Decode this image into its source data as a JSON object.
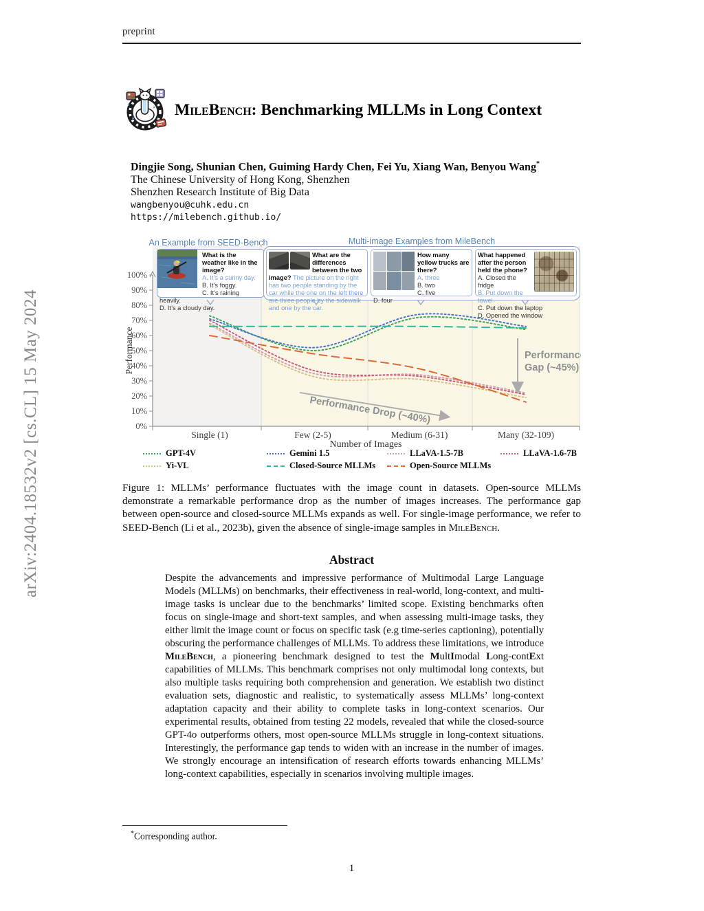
{
  "page": {
    "header": "preprint",
    "arxiv_stamp": "arXiv:2404.18532v2  [cs.CL]  15 May 2024",
    "page_number": "1"
  },
  "title": {
    "name": "MileBench",
    "rest": ": Benchmarking MLLMs in Long Context"
  },
  "authors": {
    "names": "Dingjie Song, Shunian Chen, Guiming Hardy Chen, Fei Yu, Xiang Wan, Benyou Wang",
    "mark": "*",
    "affil1": "The Chinese University of Hong Kong, Shenzhen",
    "affil2": "Shenzhen Research Institute of Big Data",
    "email": "wangbenyou@cuhk.edu.cn",
    "url": "https://milebench.github.io/"
  },
  "figure": {
    "left_caption": "An Example from SEED-Bench",
    "right_caption": "Multi-image Examples from MileBench",
    "colors": {
      "caption_blue": "#5585b5",
      "answer_blue": "#7aa3d6",
      "box_border": "#8aa6cc",
      "cream_bg": "#f9f6e6",
      "gray_bg": "#f3f2f0"
    },
    "boxes": [
      {
        "question": "What is the weather like in the image?",
        "options": [
          "A. It’s a sunny day.",
          "B. It’s foggy.",
          "C. It’s raining heavily.",
          "D. It’s a cloudy day."
        ]
      },
      {
        "question": "What are the differences between the two image?",
        "answer": "The picture on the right has two people standing by the car while the one on the left there are three people by the sidewalk and one by the car."
      },
      {
        "question": "How many yellow trucks are there?",
        "options": [
          "A. three",
          "B. two",
          "C. five",
          "D. four"
        ]
      },
      {
        "question": "What happened after the person held the phone?",
        "options": [
          "A. Closed the fridge",
          "B. Put down the towel",
          "C. Put down the laptop",
          "D. Opened the window"
        ]
      }
    ]
  },
  "chart_data": {
    "type": "line",
    "categories": [
      "Single (1)",
      "Few (2-5)",
      "Medium (6-31)",
      "Many (32-109)"
    ],
    "xlabel": "Number of  Images",
    "ylabel": "Performance",
    "ylim": [
      0,
      100
    ],
    "ytick_step": 10,
    "ytick_format": "percent",
    "grid": false,
    "legend_position": "bottom",
    "series": [
      {
        "name": "GPT-4V",
        "style": "dotted",
        "color": "#3fa45b",
        "values": [
          73,
          50,
          72,
          64
        ]
      },
      {
        "name": "Gemini 1.5",
        "style": "dotted",
        "color": "#4a74c9",
        "values": [
          71,
          52,
          74,
          66
        ]
      },
      {
        "name": "LLaVA-1.5-7B",
        "style": "dotted",
        "color": "#d49fae",
        "values": [
          68,
          35,
          34,
          22
        ]
      },
      {
        "name": "LLaVA-1.6-7B",
        "style": "dotted",
        "color": "#cf5b76",
        "values": [
          70,
          37,
          33,
          21
        ]
      },
      {
        "name": "Yi-VL",
        "style": "dotted",
        "color": "#d6c289",
        "values": [
          67,
          33,
          31,
          19
        ]
      },
      {
        "name": "Closed-Source MLLMs",
        "style": "dashed",
        "color": "#33b898",
        "values": [
          66,
          66,
          66,
          65
        ]
      },
      {
        "name": "Open-Source MLLMs",
        "style": "dashed",
        "color": "#d96b35",
        "values": [
          60,
          48,
          38,
          16
        ]
      }
    ],
    "annotations": [
      {
        "text": "Performance Drop (~40%)"
      },
      {
        "line1": "Performance",
        "line2": "Gap (~45%)"
      }
    ]
  },
  "caption": {
    "segments": [
      {
        "t": "Figure 1: MLLMs’ performance fluctuates with the image count in datasets. Open-source MLLMs demonstrate a remarkable performance drop as the number of images increases. The performance gap between open-source and closed-source MLLMs expands as well. For single-image performance, we refer to SEED-Bench (Li et al., 2023b), given the absence of single-image samples in "
      },
      {
        "t": "MileBench",
        "sc": true
      },
      {
        "t": "."
      }
    ]
  },
  "abstract": {
    "heading": "Abstract",
    "segments": [
      {
        "t": "Despite the advancements and impressive performance of Multimodal Large Language Models (MLLMs) on benchmarks, their effectiveness in real-world, long-context, and multi-image tasks is unclear due to the benchmarks’ limited scope. Existing benchmarks often focus on single-image and short-text samples, and when assessing multi-image tasks, they either limit the image count or focus on specific task (e.g time-series captioning), potentially obscuring the performance challenges of MLLMs. To address these limitations, we introduce "
      },
      {
        "t": "MileBench",
        "sc": true,
        "b": true
      },
      {
        "t": ", a pioneering benchmark designed to test the "
      },
      {
        "t": "M",
        "b": true
      },
      {
        "t": "ult"
      },
      {
        "t": "I",
        "b": true
      },
      {
        "t": "modal "
      },
      {
        "t": "L",
        "b": true
      },
      {
        "t": "ong-cont"
      },
      {
        "t": "E",
        "b": true
      },
      {
        "t": "xt"
      },
      {
        "t": " capabilities of MLLMs. This benchmark comprises not only multimodal long contexts, but also multiple tasks requiring both comprehension and generation. We establish two distinct evaluation sets, diagnostic and realistic, to systematically assess MLLMs’ long-context adaptation capacity and their ability to complete tasks in long-context scenarios. Our experimental results, obtained from testing 22 models, revealed that while the closed-source GPT-4o outperforms others, most open-source MLLMs struggle in long-context situations. Interestingly, the performance gap tends to widen with an increase in the number of images. We strongly encourage an intensification of research efforts towards enhancing MLLMs’ long-context capabilities, especially in scenarios involving multiple images."
      }
    ]
  },
  "footnote": {
    "mark": "*",
    "text": "Corresponding author."
  }
}
